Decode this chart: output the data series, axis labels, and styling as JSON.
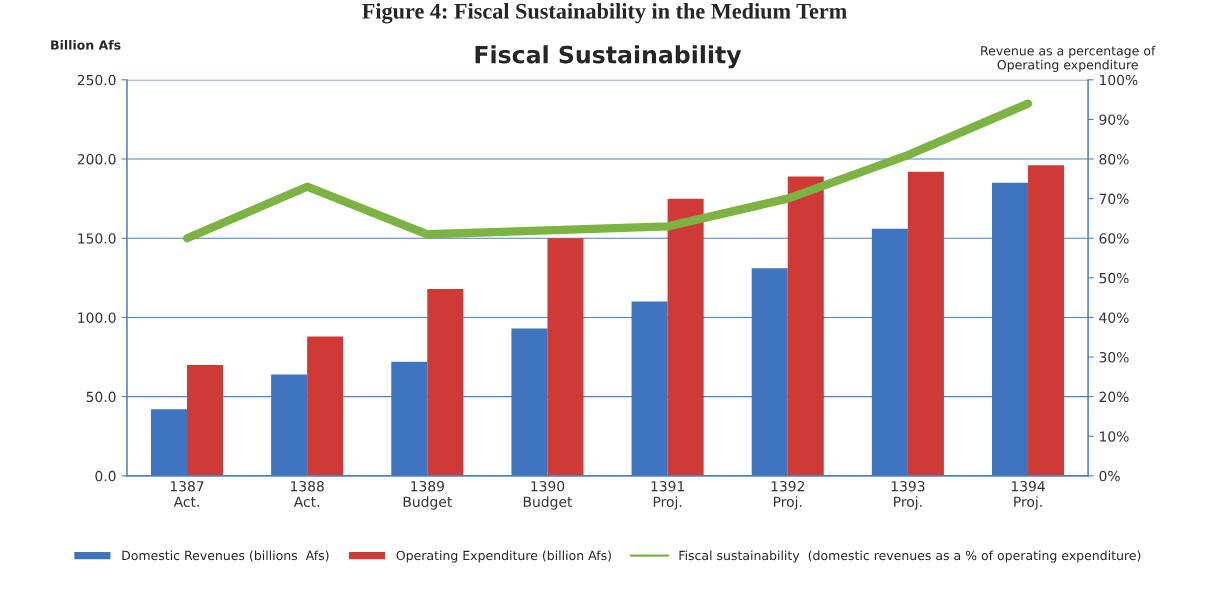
{
  "chart_data": {
    "type": "bar",
    "title": "Fiscal Sustainability",
    "annotations": [
      "Figure 4: Fiscal Sustainability in the Medium Term"
    ],
    "ylabel": "Billion Afs",
    "y2label": "Revenue as a percentage of\nOperating expenditure",
    "categories": [
      "1387\nAct.",
      "1388\nAct.",
      "1389\nBudget",
      "1390\nBudget",
      "1391\nProj.",
      "1392\nProj.",
      "1393\nProj.",
      "1394\nProj."
    ],
    "series": [
      {
        "name": "Domestic Revenues (billions  Afs)",
        "color": "#3f74bf",
        "values": [
          42,
          64,
          72,
          93,
          110,
          131,
          156,
          185
        ]
      },
      {
        "name": "Operating Expenditure (billion Afs)",
        "color": "#d03a36",
        "values": [
          70,
          88,
          118,
          150,
          175,
          189,
          192,
          196
        ]
      },
      {
        "name": "Fiscal sustainability  (domestic revenues as a % of operating expenditure)",
        "type": "line",
        "axis": "y2",
        "color": "#7cb342",
        "values": [
          60,
          73,
          61,
          62,
          63,
          70,
          81,
          94
        ]
      }
    ],
    "ylim": [
      0,
      250
    ],
    "yticks": [
      {
        "value": 0,
        "label": "0.0"
      },
      {
        "value": 50,
        "label": "50.0"
      },
      {
        "value": 100,
        "label": "100.0"
      },
      {
        "value": 150,
        "label": "150.0"
      },
      {
        "value": 200,
        "label": "200.0"
      },
      {
        "value": 250,
        "label": "250.0"
      }
    ],
    "y2lim": [
      0,
      100
    ],
    "y2ticks": [
      {
        "value": 0,
        "label": "0%"
      },
      {
        "value": 10,
        "label": "10%"
      },
      {
        "value": 20,
        "label": "20%"
      },
      {
        "value": 30,
        "label": "30%"
      },
      {
        "value": 40,
        "label": "40%"
      },
      {
        "value": 50,
        "label": "50%"
      },
      {
        "value": 60,
        "label": "60%"
      },
      {
        "value": 70,
        "label": "70%"
      },
      {
        "value": 80,
        "label": "80%"
      },
      {
        "value": 90,
        "label": "90%"
      },
      {
        "value": 100,
        "label": "100%"
      }
    ],
    "grid": "y",
    "legend": "bottom",
    "marker": "none",
    "line_style": "solid"
  }
}
